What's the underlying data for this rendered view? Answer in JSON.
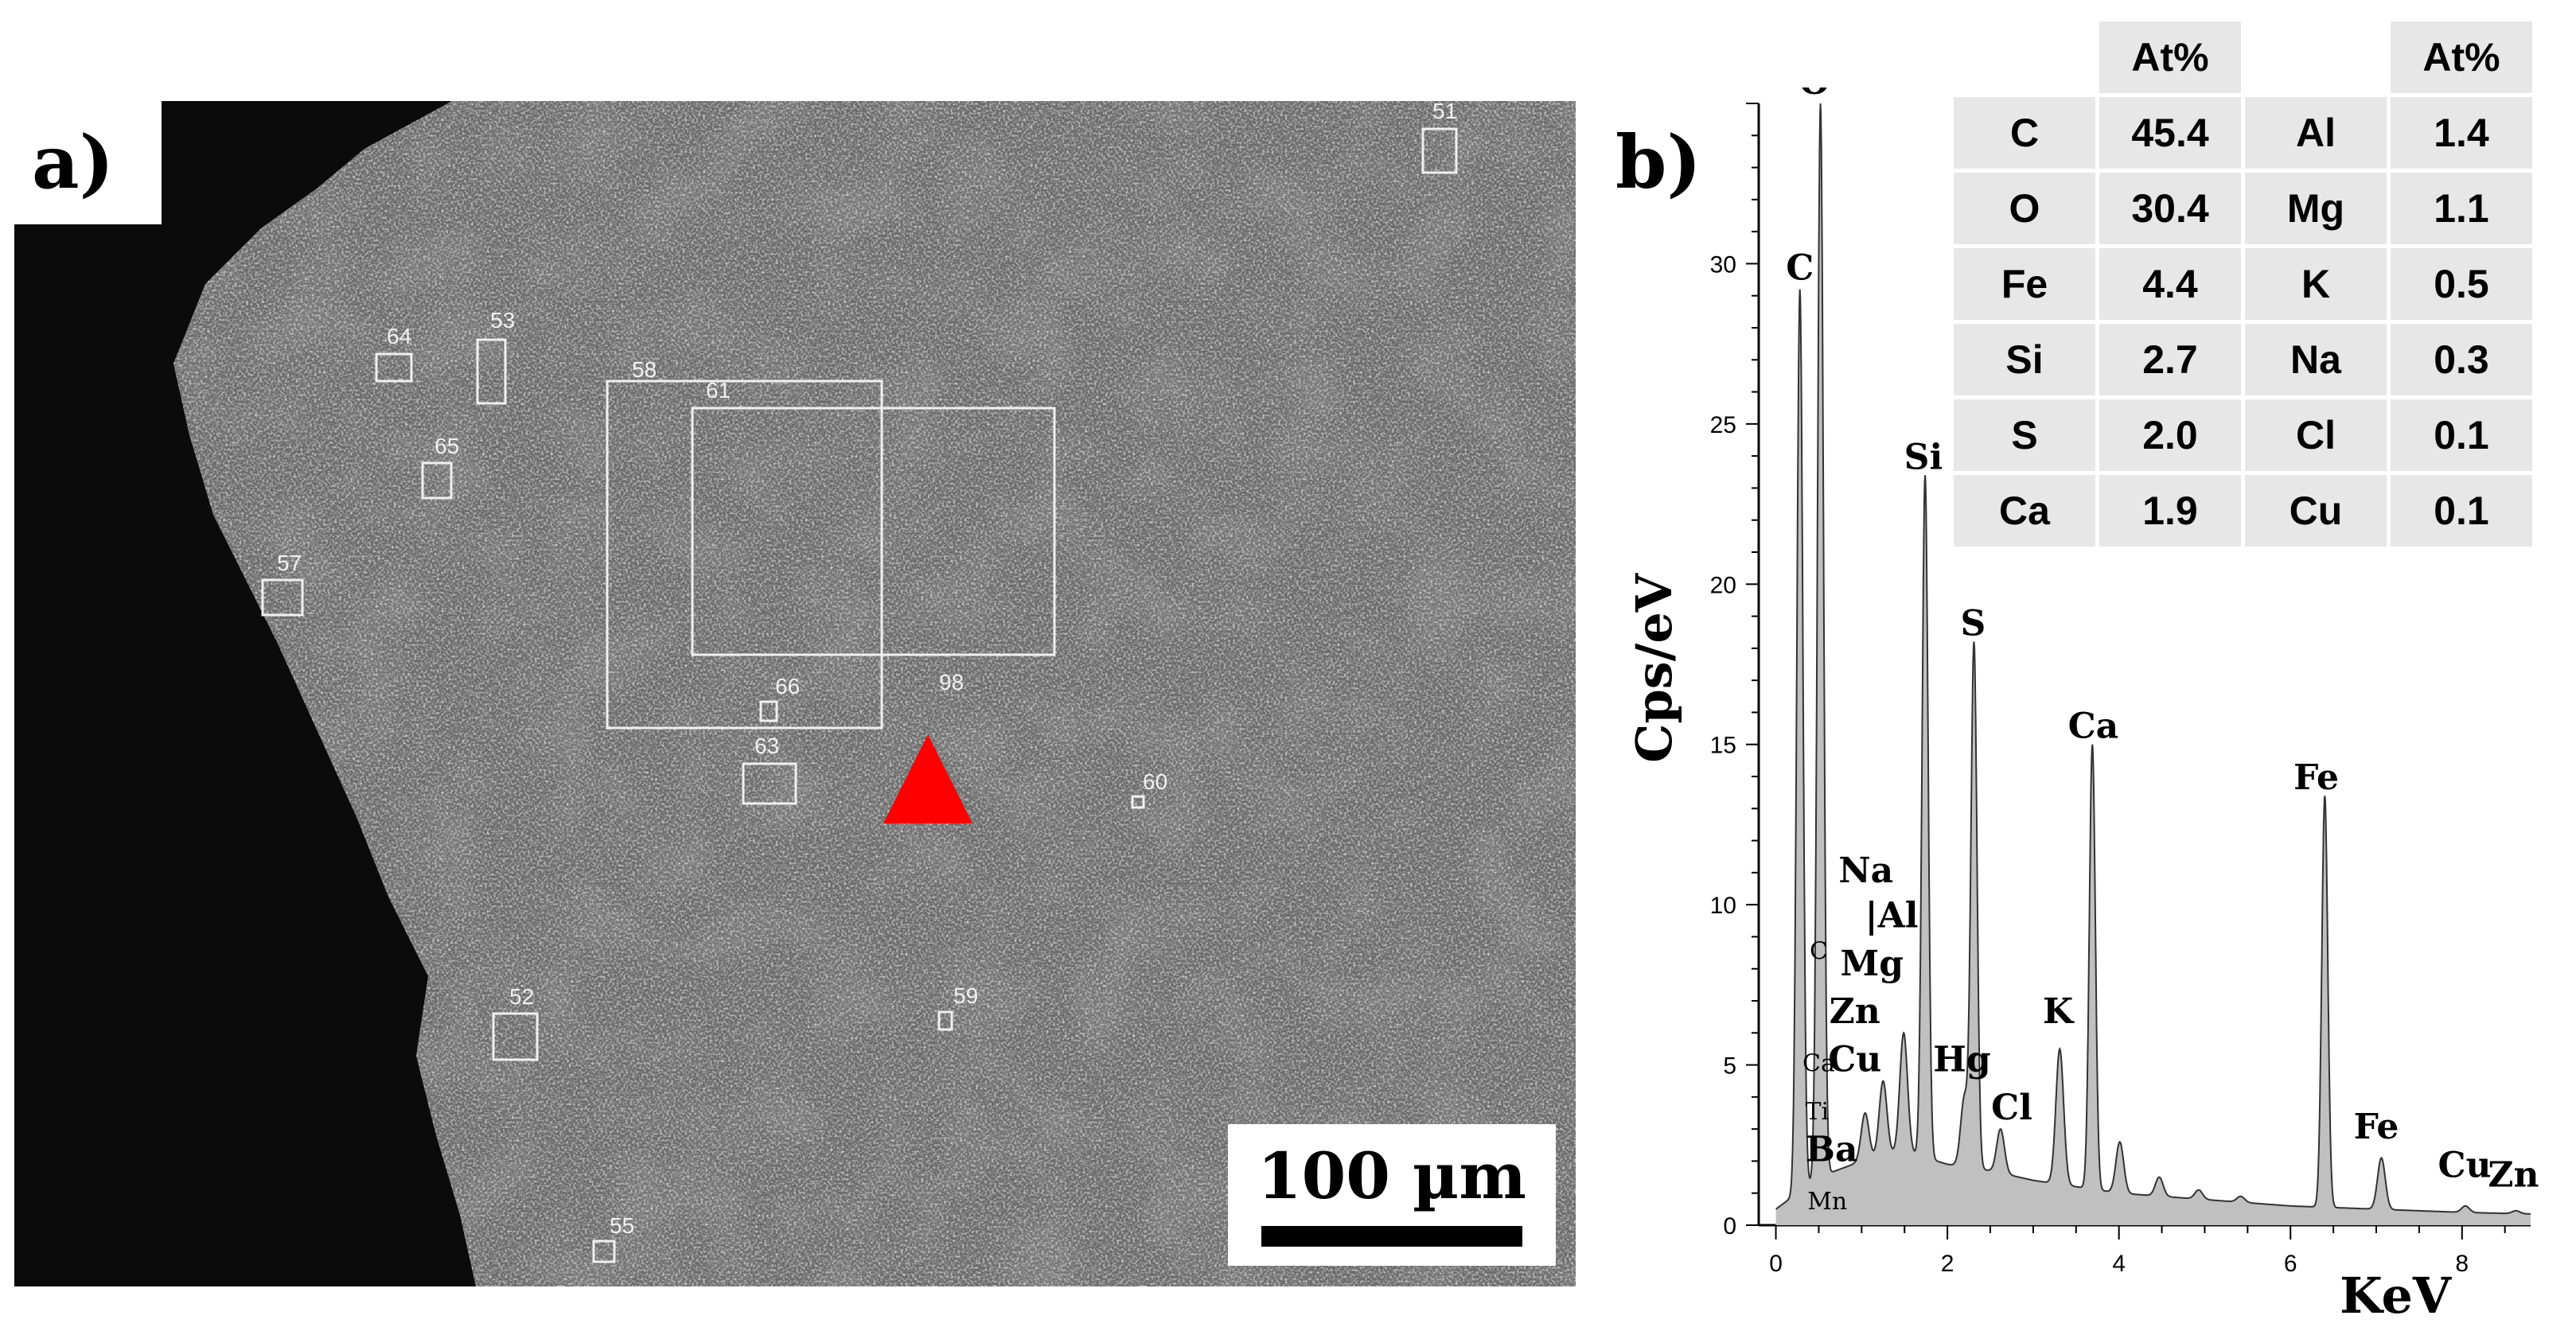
{
  "panel_a": {
    "label": "a)",
    "scale_bar": "100 µm",
    "regions": [
      "51",
      "52",
      "53",
      "55",
      "57",
      "58",
      "59",
      "60",
      "61",
      "63",
      "64",
      "65",
      "66",
      "98"
    ]
  },
  "panel_b": {
    "label": "b)"
  },
  "table": {
    "header": [
      "At%",
      "At%"
    ],
    "rows": [
      {
        "el1": "C",
        "v1": "45.4",
        "el2": "Al",
        "v2": "1.4"
      },
      {
        "el1": "O",
        "v1": "30.4",
        "el2": "Mg",
        "v2": "1.1"
      },
      {
        "el1": "Fe",
        "v1": "4.4",
        "el2": "K",
        "v2": "0.5"
      },
      {
        "el1": "Si",
        "v1": "2.7",
        "el2": "Na",
        "v2": "0.3"
      },
      {
        "el1": "S",
        "v1": "2.0",
        "el2": "Cl",
        "v2": "0.1"
      },
      {
        "el1": "Ca",
        "v1": "1.9",
        "el2": "Cu",
        "v2": "0.1"
      }
    ]
  },
  "chart_data": {
    "type": "area",
    "xlabel": "KeV",
    "ylabel": "Cps/eV",
    "xlim": [
      -0.2,
      8.8
    ],
    "ylim": [
      0,
      35
    ],
    "xticks": [
      0,
      2,
      4,
      6,
      8
    ],
    "yticks": [
      0,
      5,
      10,
      15,
      20,
      25,
      30
    ],
    "fill_color": "#c0c0c0",
    "line_color": "#333333",
    "baseline": [
      [
        0,
        0.5
      ],
      [
        0.5,
        1.5
      ],
      [
        1.0,
        2.0
      ],
      [
        1.5,
        2.3
      ],
      [
        2.0,
        1.9
      ],
      [
        2.5,
        1.7
      ],
      [
        3.0,
        1.4
      ],
      [
        4.0,
        1.0
      ],
      [
        5.0,
        0.8
      ],
      [
        6.0,
        0.6
      ],
      [
        7.0,
        0.5
      ],
      [
        8.0,
        0.4
      ],
      [
        8.8,
        0.35
      ]
    ],
    "peaks": [
      {
        "label": "C",
        "kev": 0.28,
        "cps": 29.2
      },
      {
        "label": "O",
        "kev": 0.52,
        "cps": 35.0
      },
      {
        "label": "Na",
        "kev": 1.04,
        "cps": 3.5
      },
      {
        "label": "Mg",
        "kev": 1.25,
        "cps": 4.5
      },
      {
        "label": "Al",
        "kev": 1.49,
        "cps": 6.0
      },
      {
        "label": "Si",
        "kev": 1.74,
        "cps": 23.4
      },
      {
        "label": "Hg",
        "kev": 2.2,
        "cps": 4.0
      },
      {
        "label": "S",
        "kev": 2.31,
        "cps": 18.1
      },
      {
        "label": "Cl",
        "kev": 2.62,
        "cps": 3.0
      },
      {
        "label": "K",
        "kev": 3.31,
        "cps": 5.5
      },
      {
        "label": "Ca",
        "kev": 3.69,
        "cps": 15.0
      },
      {
        "label": "Ca",
        "kev": 4.01,
        "cps": 2.6
      },
      {
        "label": "Ba",
        "kev": 4.47,
        "cps": 1.5
      },
      {
        "label": "Ti",
        "kev": 4.93,
        "cps": 1.1
      },
      {
        "label": "Mn",
        "kev": 5.42,
        "cps": 0.9
      },
      {
        "label": "Fe",
        "kev": 6.4,
        "cps": 13.4
      },
      {
        "label": "Fe",
        "kev": 7.06,
        "cps": 2.1
      },
      {
        "label": "Cu",
        "kev": 8.04,
        "cps": 0.6
      },
      {
        "label": "Zn",
        "kev": 8.63,
        "cps": 0.45
      }
    ],
    "annotations": [
      {
        "text": "O",
        "kev": 0.45,
        "cps": 35.3,
        "size": "large"
      },
      {
        "text": "C",
        "kev": 0.28,
        "cps": 29.5,
        "size": "large"
      },
      {
        "text": "Si",
        "kev": 1.72,
        "cps": 23.6,
        "size": "large"
      },
      {
        "text": "S",
        "kev": 2.3,
        "cps": 18.4,
        "size": "large"
      },
      {
        "text": "Ca",
        "kev": 3.7,
        "cps": 15.2,
        "size": "large"
      },
      {
        "text": "Fe",
        "kev": 6.3,
        "cps": 13.6,
        "size": "large"
      },
      {
        "text": "Na",
        "kev": 1.05,
        "cps": 10.7,
        "size": "large"
      },
      {
        "text": "|Al",
        "kev": 1.35,
        "cps": 9.3,
        "size": "large"
      },
      {
        "text": "C",
        "kev": 0.5,
        "cps": 8.3,
        "size": "small"
      },
      {
        "text": "Mg",
        "kev": 1.12,
        "cps": 7.8,
        "size": "large"
      },
      {
        "text": "Zn",
        "kev": 0.92,
        "cps": 6.3,
        "size": "large"
      },
      {
        "text": "Cu",
        "kev": 0.92,
        "cps": 4.8,
        "size": "large"
      },
      {
        "text": "Hg",
        "kev": 2.17,
        "cps": 4.8,
        "size": "large"
      },
      {
        "text": "K",
        "kev": 3.29,
        "cps": 6.3,
        "size": "large"
      },
      {
        "text": "Cl",
        "kev": 2.75,
        "cps": 3.3,
        "size": "large"
      },
      {
        "text": "Ca",
        "kev": 0.5,
        "cps": 4.8,
        "size": "small"
      },
      {
        "text": "Ti",
        "kev": 0.48,
        "cps": 3.3,
        "size": "small"
      },
      {
        "text": "Ba",
        "kev": 0.65,
        "cps": 2.0,
        "size": "large"
      },
      {
        "text": "Mn",
        "kev": 0.6,
        "cps": 0.5,
        "size": "small"
      },
      {
        "text": "Fe",
        "kev": 7.0,
        "cps": 2.7,
        "size": "large"
      },
      {
        "text": "Cu",
        "kev": 8.03,
        "cps": 1.5,
        "size": "large"
      },
      {
        "text": "Zn",
        "kev": 8.6,
        "cps": 1.2,
        "size": "large"
      }
    ]
  }
}
